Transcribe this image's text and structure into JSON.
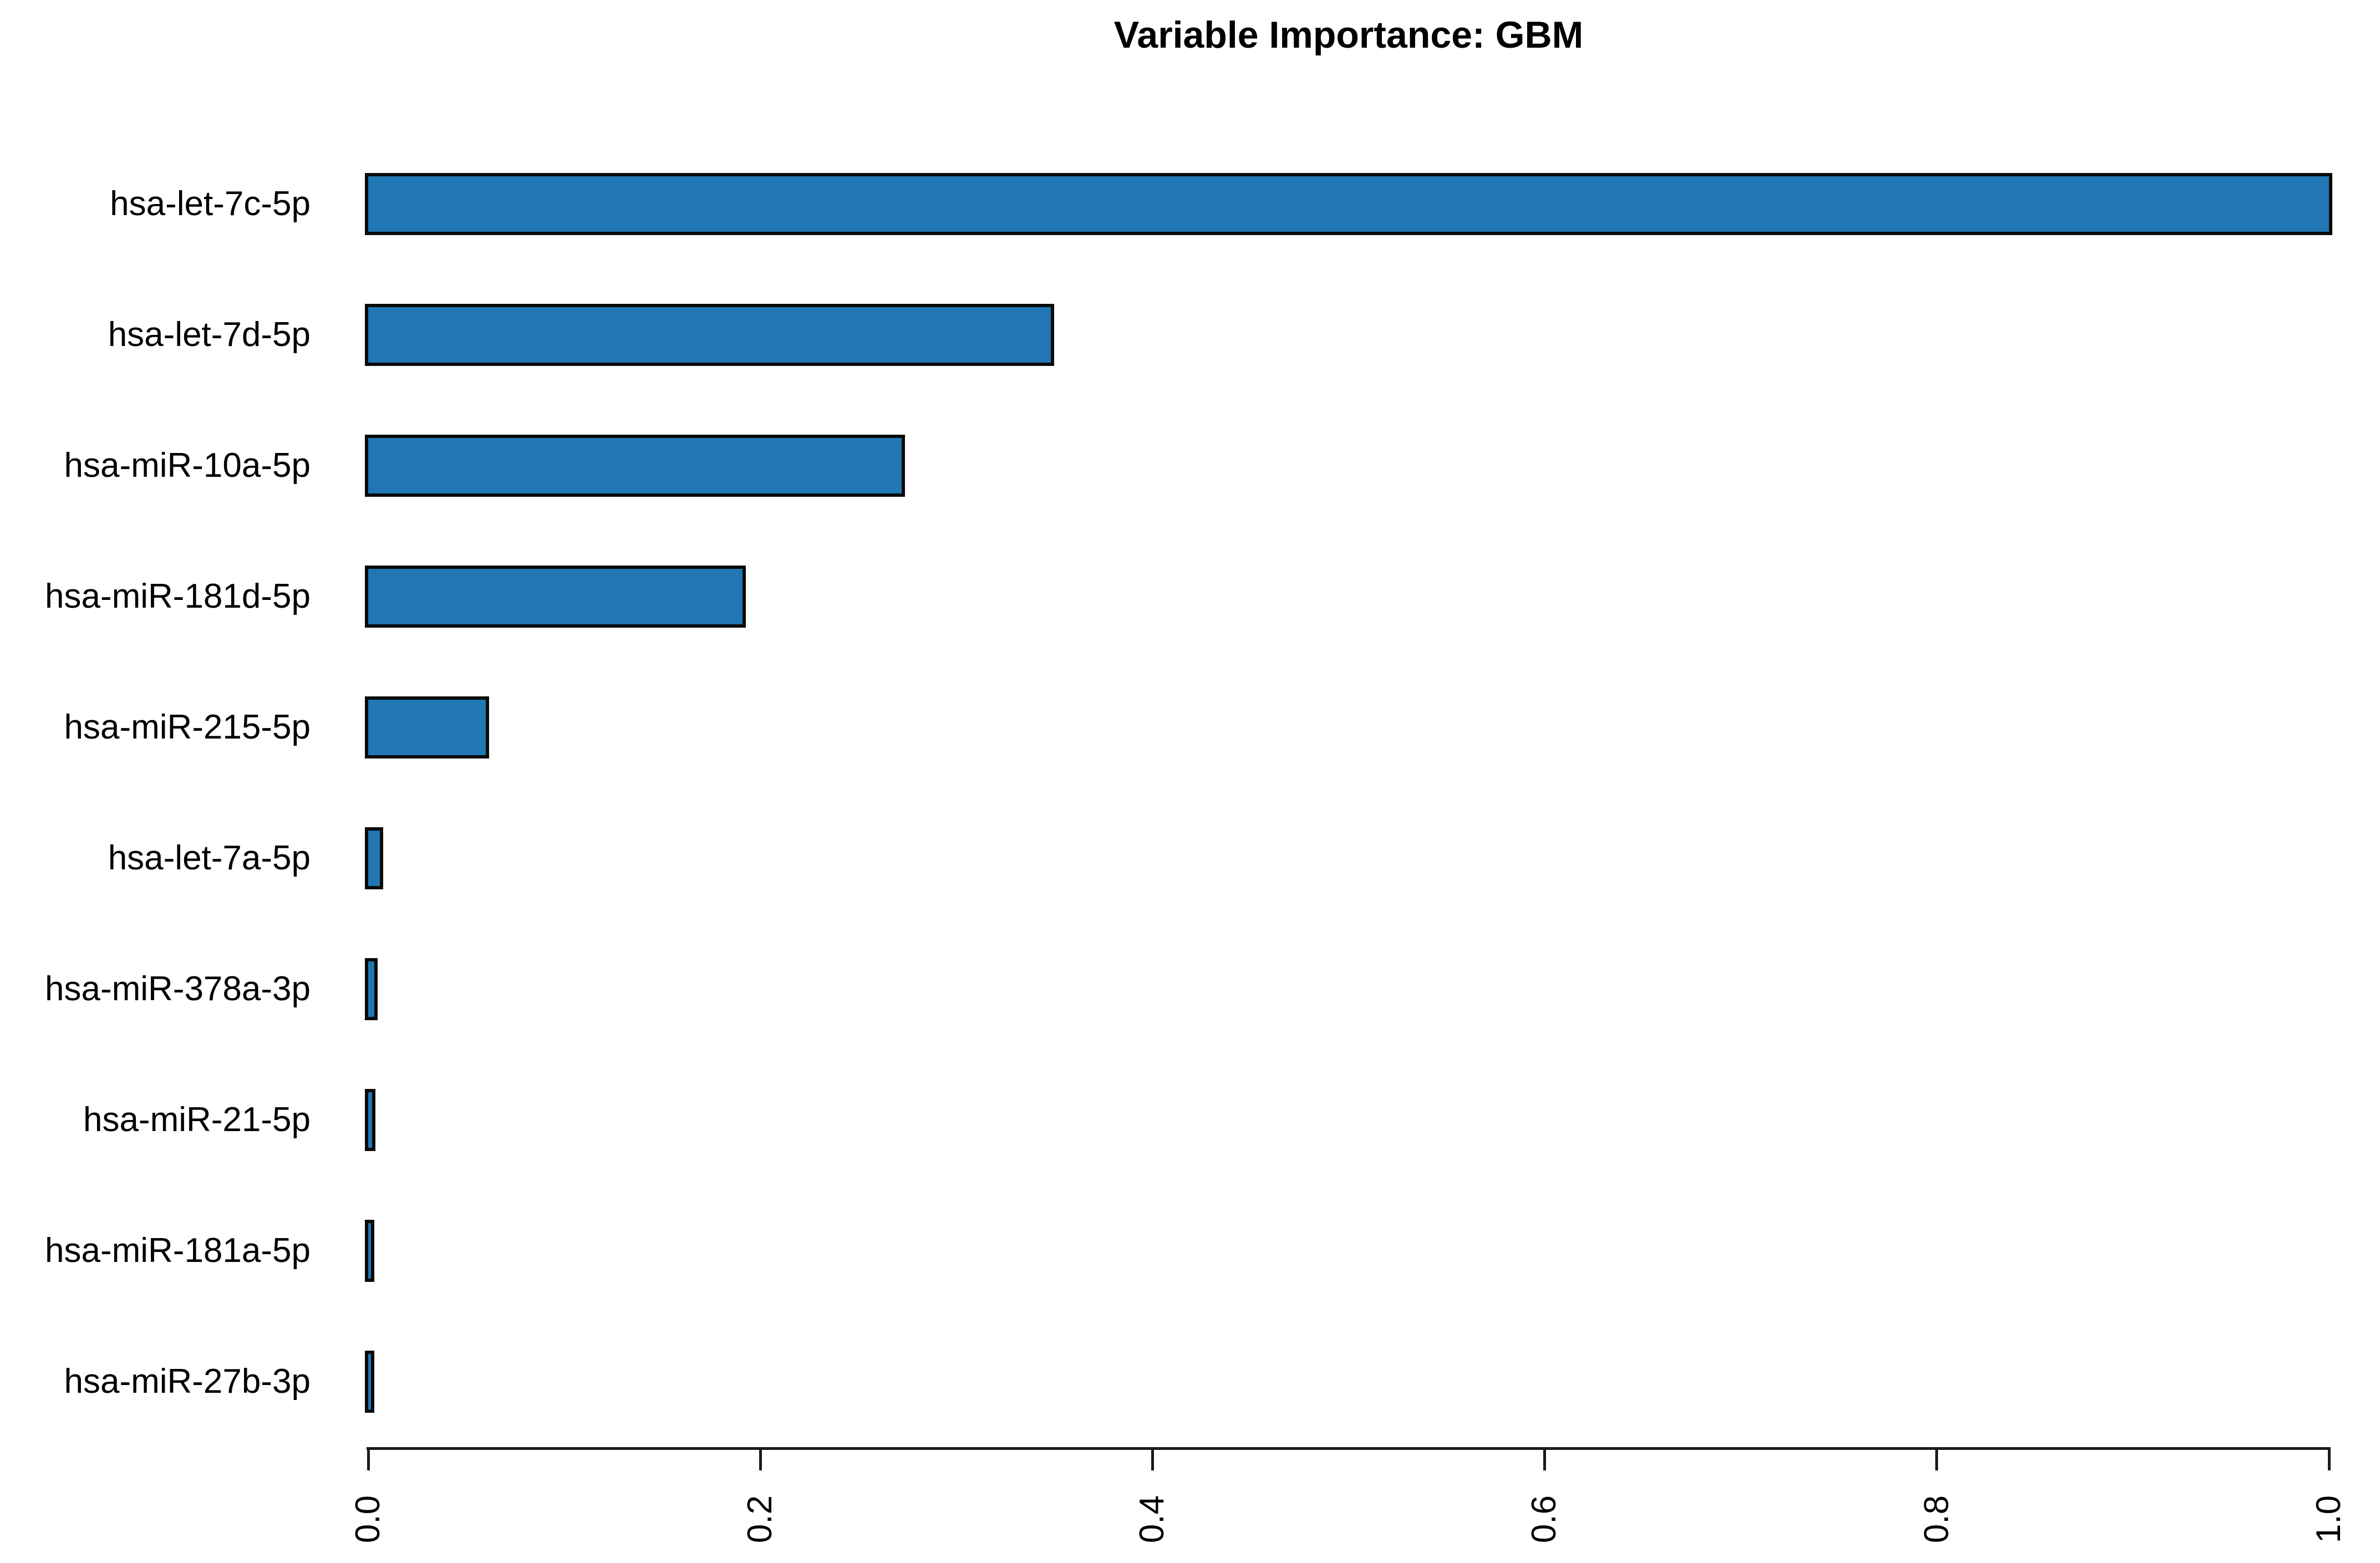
{
  "chart_data": {
    "type": "bar",
    "orientation": "horizontal",
    "title": "Variable Importance: GBM",
    "categories": [
      "hsa-let-7c-5p",
      "hsa-let-7d-5p",
      "hsa-miR-10a-5p",
      "hsa-miR-181d-5p",
      "hsa-miR-215-5p",
      "hsa-let-7a-5p",
      "hsa-miR-378a-3p",
      "hsa-miR-21-5p",
      "hsa-miR-181a-5p",
      "hsa-miR-27b-3p"
    ],
    "values": [
      1.0,
      0.348,
      0.272,
      0.191,
      0.06,
      0.006,
      0.003,
      0.002,
      0.0015,
      0.0015
    ],
    "xlabel": "",
    "ylabel": "",
    "xlim": [
      0.0,
      1.0
    ],
    "xticks": [
      0.0,
      0.2,
      0.4,
      0.6,
      0.8,
      1.0
    ],
    "xtick_labels": [
      "0.0",
      "0.2",
      "0.4",
      "0.6",
      "0.8",
      "1.0"
    ],
    "xtick_label_rotation_deg": 90,
    "grid": false,
    "legend": null,
    "colors": {
      "bar_fill": "#2077b4",
      "bar_border": "#0a0a0a",
      "axis": "#1a1a1a",
      "text": "#000000",
      "background": "#ffffff"
    }
  }
}
